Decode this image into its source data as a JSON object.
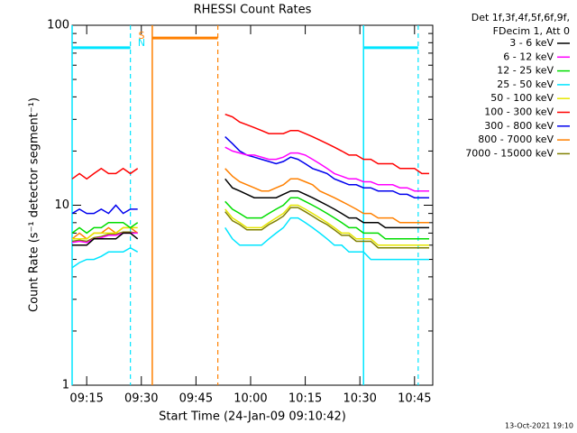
{
  "chart_data": {
    "type": "line",
    "title": "RHESSI Count Rates",
    "legend_header": [
      "Det 1f,3f,4f,5f,6f,9f,",
      "FDecim 1, Att 0"
    ],
    "ylabel": "Count Rate (s⁻¹ detector segment⁻¹)",
    "xlabel": "Start Time (24-Jan-09 09:10:42)",
    "footer": "13-Oct-2021 19:10",
    "log_y": true,
    "legend": "right",
    "ylim": [
      1,
      100
    ],
    "yticks": [
      1,
      10,
      100
    ],
    "xlim": [
      "09:11",
      "10:50"
    ],
    "xticks": [
      "09:15",
      "09:30",
      "09:45",
      "10:00",
      "10:15",
      "10:30",
      "10:45"
    ],
    "x": [
      "09:11",
      "09:13",
      "09:15",
      "09:17",
      "09:19",
      "09:21",
      "09:23",
      "09:25",
      "09:27",
      "09:29",
      "09:31",
      "09:53",
      "09:55",
      "09:57",
      "09:59",
      "10:01",
      "10:03",
      "10:05",
      "10:07",
      "10:09",
      "10:11",
      "10:13",
      "10:15",
      "10:17",
      "10:19",
      "10:21",
      "10:23",
      "10:25",
      "10:27",
      "10:29",
      "10:31",
      "10:33",
      "10:35",
      "10:37",
      "10:39",
      "10:41",
      "10:43",
      "10:45",
      "10:47",
      "10:49"
    ],
    "series": [
      {
        "name": "3 - 6 keV",
        "color": "#000000",
        "values": [
          6,
          6,
          6,
          6.5,
          6.5,
          6.5,
          6.5,
          7,
          7,
          6.5,
          null,
          14,
          12.5,
          12,
          11.5,
          11,
          11,
          11,
          11,
          11.5,
          12,
          12,
          11.5,
          11,
          10.5,
          10,
          9.5,
          9,
          8.5,
          8.5,
          8,
          8,
          8,
          7.5,
          7.5,
          7.5,
          7.5,
          7.5,
          7.5,
          7.5
        ]
      },
      {
        "name": "6 - 12 keV",
        "color": "#ff00ff",
        "values": [
          6.2,
          6.3,
          6.2,
          6.5,
          6.6,
          6.8,
          6.8,
          7,
          7,
          7,
          null,
          21,
          20,
          19.5,
          19,
          19,
          18.5,
          18,
          18,
          18.5,
          19.5,
          19.5,
          19,
          18,
          17,
          16,
          15,
          14.5,
          14,
          14,
          13.5,
          13.5,
          13,
          13,
          13,
          12.5,
          12.5,
          12,
          12,
          12
        ]
      },
      {
        "name": "12 - 25 keV",
        "color": "#00dd00",
        "values": [
          7,
          7.5,
          7,
          7.5,
          7.5,
          8,
          8,
          8,
          7.5,
          8,
          null,
          10.5,
          9.5,
          9,
          8.5,
          8.5,
          8.5,
          9,
          9.5,
          10,
          11,
          11,
          10.5,
          10,
          9.5,
          9,
          8.5,
          8,
          7.5,
          7.5,
          7,
          7,
          7,
          6.5,
          6.5,
          6.5,
          6.5,
          6.5,
          6.5,
          6.5
        ]
      },
      {
        "name": "25 - 50 keV",
        "color": "#00e5ff",
        "values": [
          4.5,
          4.8,
          5,
          5,
          5.2,
          5.5,
          5.5,
          5.5,
          5.8,
          5.5,
          null,
          7.5,
          6.5,
          6,
          6,
          6,
          6,
          6.5,
          7,
          7.5,
          8.5,
          8.5,
          8,
          7.5,
          7,
          6.5,
          6,
          6,
          5.5,
          5.5,
          5.5,
          5,
          5,
          5,
          5,
          5,
          5,
          5,
          5,
          5
        ]
      },
      {
        "name": "50 - 100 keV",
        "color": "#e6e600",
        "values": [
          6.5,
          6.5,
          6.5,
          7,
          7,
          7,
          7,
          7.5,
          7.5,
          7.5,
          null,
          9.5,
          8.5,
          8,
          7.5,
          7.5,
          7.5,
          8,
          8.5,
          9,
          10,
          10,
          9.5,
          9,
          8.5,
          8,
          7.5,
          7,
          7,
          6.5,
          6.5,
          6.5,
          6,
          6,
          6,
          6,
          6,
          6,
          6,
          6
        ]
      },
      {
        "name": "100 - 300 keV",
        "color": "#ff0000",
        "values": [
          14,
          15,
          14,
          15,
          16,
          15,
          15,
          16,
          15,
          16,
          null,
          32,
          31,
          29,
          28,
          27,
          26,
          25,
          25,
          25,
          26,
          26,
          25,
          24,
          23,
          22,
          21,
          20,
          19,
          19,
          18,
          18,
          17,
          17,
          17,
          16,
          16,
          16,
          15,
          15
        ]
      },
      {
        "name": "300 - 800 keV",
        "color": "#0000ee",
        "values": [
          9,
          9.5,
          9,
          9,
          9.5,
          9,
          10,
          9,
          9.5,
          9.5,
          null,
          24,
          22,
          20,
          19,
          18.5,
          18,
          17.5,
          17,
          17.5,
          18.5,
          18,
          17,
          16,
          15.5,
          15,
          14,
          13.5,
          13,
          13,
          12.5,
          12.5,
          12,
          12,
          12,
          11.5,
          11.5,
          11,
          11,
          11
        ]
      },
      {
        "name": "800 - 7000 keV",
        "color": "#ff8000",
        "values": [
          6.5,
          7,
          6.5,
          7,
          7,
          7.5,
          7,
          7.5,
          7.5,
          7,
          null,
          16,
          14.5,
          13.5,
          13,
          12.5,
          12,
          12,
          12.5,
          13,
          14,
          14,
          13.5,
          13,
          12,
          11.5,
          11,
          10.5,
          10,
          9.5,
          9,
          9,
          8.5,
          8.5,
          8.5,
          8,
          8,
          8,
          8,
          8
        ]
      },
      {
        "name": "7000 - 15000 keV",
        "color": "#808000",
        "values": [
          6.3,
          6.4,
          6.3,
          6.6,
          6.7,
          6.9,
          6.9,
          7.1,
          7.1,
          7,
          null,
          9.2,
          8.2,
          7.8,
          7.3,
          7.3,
          7.3,
          7.8,
          8.2,
          8.7,
          9.7,
          9.7,
          9.2,
          8.7,
          8.2,
          7.8,
          7.3,
          6.8,
          6.8,
          6.3,
          6.3,
          6.3,
          5.8,
          5.8,
          5.8,
          5.8,
          5.8,
          5.8,
          5.8,
          5.8
        ]
      }
    ],
    "intervals": [
      {
        "label": "N",
        "color": "#00e5ff",
        "level": 75,
        "start": "09:11",
        "end": "09:27"
      },
      {
        "label": "S",
        "color": "#ff8000",
        "level": 85,
        "start": "09:33",
        "end": "09:51"
      },
      {
        "color": "#00e5ff",
        "level": 75,
        "start": "10:31",
        "end": "10:46"
      }
    ]
  }
}
